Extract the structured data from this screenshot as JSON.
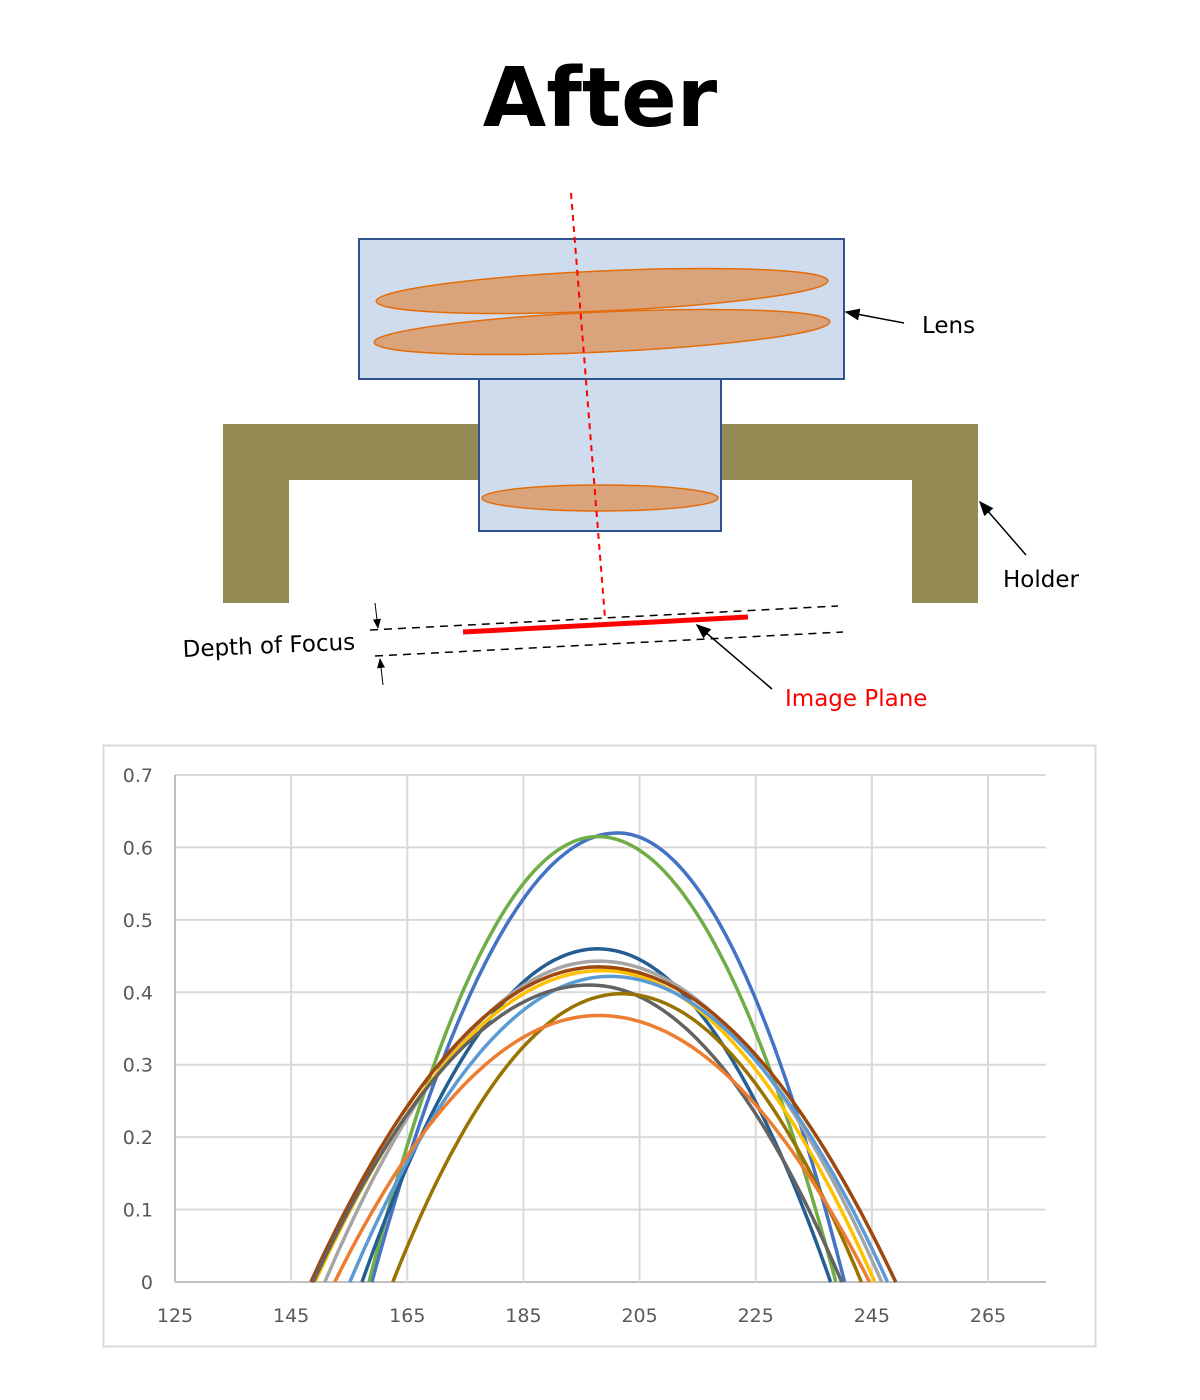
{
  "title": "After",
  "diagram": {
    "labels": {
      "lens": "Lens",
      "holder": "Holder",
      "depth_of_focus": "Depth of Focus",
      "image_plane": "Image Plane"
    },
    "colors": {
      "lens_fill": "#cfdcee",
      "lens_stroke": "#2f528f",
      "element_fill": "#d9a47c",
      "element_stroke": "#e46c0a",
      "holder": "#948a54",
      "optical_axis": "#ff0000",
      "image_plane": "#ff0000"
    }
  },
  "chart_data": {
    "type": "line",
    "title": "",
    "xlabel": "",
    "ylabel": "",
    "xlim": [
      125,
      265
    ],
    "ylim": [
      0,
      0.7
    ],
    "xticks": [
      "125",
      "145",
      "165",
      "185",
      "205",
      "225",
      "245",
      "265"
    ],
    "yticks": [
      "0",
      "0.1",
      "0.2",
      "0.3",
      "0.4",
      "0.5",
      "0.6",
      "0.7"
    ],
    "grid": true,
    "legend": "none",
    "series": [
      {
        "color": "#4472c4",
        "left_zero": 158.9,
        "peak_x": 201.2,
        "peak_y": 0.62,
        "right_zero": 240.3
      },
      {
        "color": "#70ad47",
        "left_zero": 158.4,
        "peak_x": 197.8,
        "peak_y": 0.615,
        "right_zero": 238.8
      },
      {
        "color": "#255e91",
        "left_zero": 157.2,
        "peak_x": 197.8,
        "peak_y": 0.46,
        "right_zero": 237.9
      },
      {
        "color": "#a5a5a5",
        "left_zero": 150.8,
        "peak_x": 198.0,
        "peak_y": 0.443,
        "right_zero": 246.7
      },
      {
        "color": "#ffc000",
        "left_zero": 149.1,
        "peak_x": 198.5,
        "peak_y": 0.43,
        "right_zero": 245.5
      },
      {
        "color": "#9e480e",
        "left_zero": 148.4,
        "peak_x": 198.0,
        "peak_y": 0.435,
        "right_zero": 249.1
      },
      {
        "color": "#5b9bd5",
        "left_zero": 155.1,
        "peak_x": 199.9,
        "peak_y": 0.422,
        "right_zero": 247.7
      },
      {
        "color": "#636363",
        "left_zero": 148.8,
        "peak_x": 196.4,
        "peak_y": 0.41,
        "right_zero": 239.8
      },
      {
        "color": "#997300",
        "left_zero": 162.5,
        "peak_x": 201.9,
        "peak_y": 0.398,
        "right_zero": 243.2
      },
      {
        "color": "#ed7d31",
        "left_zero": 152.5,
        "peak_x": 198.0,
        "peak_y": 0.368,
        "right_zero": 244.6
      }
    ]
  }
}
